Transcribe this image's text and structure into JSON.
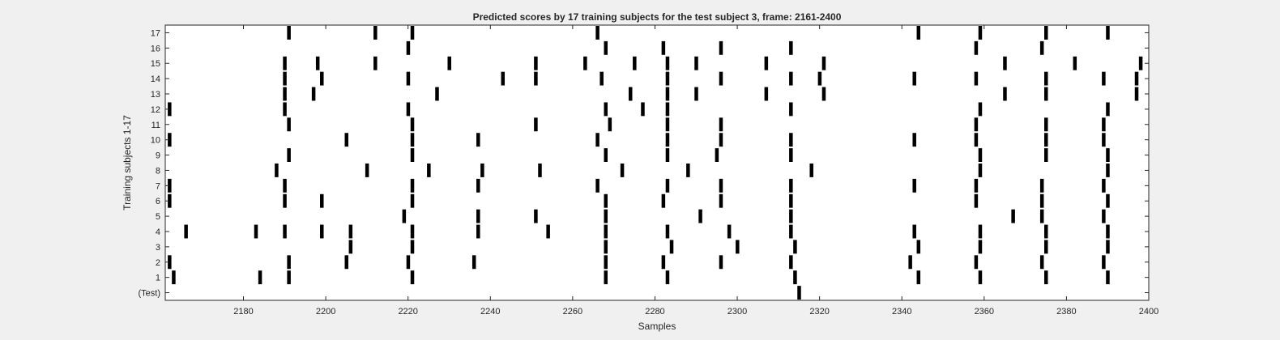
{
  "chart_data": {
    "type": "raster",
    "title": "Predicted scores by 17 training subjects for the test subject 3, frame: 2161-2400",
    "xlabel": "Samples",
    "ylabel": "Training subjects 1-17",
    "xlim": [
      2161,
      2400
    ],
    "x_ticks": [
      2180,
      2200,
      2220,
      2240,
      2260,
      2280,
      2300,
      2320,
      2340,
      2360,
      2380,
      2400
    ],
    "y_tick_labels": [
      "(Test)",
      "1",
      "2",
      "3",
      "4",
      "5",
      "6",
      "7",
      "8",
      "9",
      "10",
      "11",
      "12",
      "13",
      "14",
      "15",
      "16",
      "17"
    ],
    "grid": false,
    "background_color": "#f0f0f0",
    "axes_color": "#ffffff",
    "mark_color": "#000000",
    "rows": [
      {
        "label": "(Test)",
        "x": [
          2315
        ]
      },
      {
        "label": "1",
        "x": [
          2163,
          2184,
          2191,
          2221,
          2268,
          2283,
          2314,
          2344,
          2359,
          2375,
          2390
        ]
      },
      {
        "label": "2",
        "x": [
          2162,
          2205,
          2191,
          2220,
          2236,
          2268,
          2282,
          2296,
          2313,
          2342,
          2358,
          2374,
          2389
        ]
      },
      {
        "label": "3",
        "x": [
          2206,
          2221,
          2268,
          2284,
          2300,
          2314,
          2344,
          2359,
          2375,
          2390
        ]
      },
      {
        "label": "4",
        "x": [
          2166,
          2183,
          2190,
          2199,
          2206,
          2221,
          2237,
          2254,
          2268,
          2283,
          2298,
          2313,
          2343,
          2359,
          2375,
          2390
        ]
      },
      {
        "label": "5",
        "x": [
          2219,
          2237,
          2251,
          2268,
          2291,
          2313,
          2367,
          2374,
          2389
        ]
      },
      {
        "label": "6",
        "x": [
          2162,
          2190,
          2199,
          2221,
          2268,
          2282,
          2296,
          2313,
          2358,
          2374,
          2390
        ]
      },
      {
        "label": "7",
        "x": [
          2162,
          2190,
          2221,
          2237,
          2266,
          2283,
          2296,
          2313,
          2343,
          2358,
          2374,
          2389
        ]
      },
      {
        "label": "8",
        "x": [
          2188,
          2210,
          2225,
          2238,
          2252,
          2272,
          2288,
          2318,
          2359,
          2390
        ]
      },
      {
        "label": "9",
        "x": [
          2191,
          2221,
          2268,
          2283,
          2295,
          2313,
          2359,
          2375,
          2390
        ]
      },
      {
        "label": "10",
        "x": [
          2162,
          2205,
          2221,
          2237,
          2266,
          2283,
          2296,
          2313,
          2343,
          2358,
          2375,
          2389
        ]
      },
      {
        "label": "11",
        "x": [
          2191,
          2221,
          2251,
          2269,
          2283,
          2296,
          2358,
          2375,
          2389
        ]
      },
      {
        "label": "12",
        "x": [
          2162,
          2190,
          2220,
          2268,
          2277,
          2283,
          2313,
          2359,
          2390
        ]
      },
      {
        "label": "13",
        "x": [
          2190,
          2197,
          2227,
          2274,
          2283,
          2290,
          2307,
          2321,
          2365,
          2375,
          2397
        ]
      },
      {
        "label": "14",
        "x": [
          2190,
          2199,
          2220,
          2243,
          2251,
          2267,
          2283,
          2296,
          2313,
          2320,
          2343,
          2358,
          2375,
          2389,
          2397
        ]
      },
      {
        "label": "15",
        "x": [
          2190,
          2198,
          2212,
          2230,
          2251,
          2263,
          2275,
          2283,
          2290,
          2307,
          2321,
          2365,
          2382,
          2398
        ]
      },
      {
        "label": "16",
        "x": [
          2220,
          2268,
          2282,
          2296,
          2313,
          2358,
          2374
        ]
      },
      {
        "label": "17",
        "x": [
          2191,
          2212,
          2221,
          2266,
          2344,
          2359,
          2375,
          2390
        ]
      }
    ]
  }
}
